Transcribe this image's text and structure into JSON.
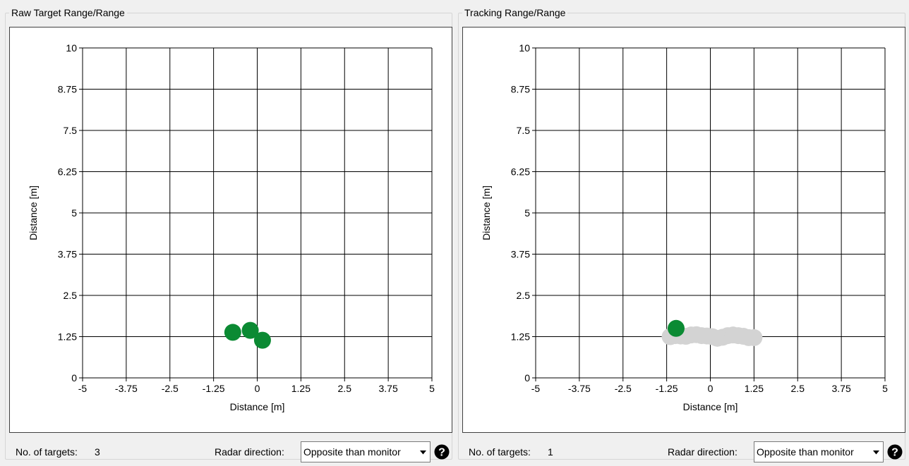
{
  "panels": [
    {
      "title": "Raw Target Range/Range",
      "targets_label": "No. of targets:",
      "targets_value": "3",
      "direction_label": "Radar direction:",
      "direction_value": "Opposite than monitor",
      "direction_options": [
        "Opposite than monitor"
      ]
    },
    {
      "title": "Tracking Range/Range",
      "targets_label": "No. of targets:",
      "targets_value": "1",
      "direction_label": "Radar direction:",
      "direction_value": "Opposite than monitor",
      "direction_options": [
        "Opposite than monitor"
      ]
    }
  ],
  "colors": {
    "target": "#0b8a33",
    "track_history": "#d3d3d3",
    "grid": "#000000",
    "background": "#ffffff"
  },
  "icons": {
    "help": "help-question-icon",
    "dropdown": "chevron-down-icon"
  },
  "chart_data": [
    {
      "type": "scatter",
      "title": "",
      "xlabel": "Distance [m]",
      "ylabel": "Distance [m]",
      "xlim": [
        -5,
        5
      ],
      "ylim": [
        0,
        10
      ],
      "xticks": [
        "-5",
        "-3.75",
        "-2.5",
        "-1.25",
        "0",
        "1.25",
        "2.5",
        "3.75",
        "5"
      ],
      "yticks": [
        "0",
        "1.25",
        "2.5",
        "3.75",
        "5",
        "6.25",
        "7.5",
        "8.75",
        "10"
      ],
      "grid": true,
      "trail": [],
      "points": [
        {
          "x": -0.7,
          "y": 1.38
        },
        {
          "x": -0.2,
          "y": 1.44
        },
        {
          "x": 0.15,
          "y": 1.14
        }
      ]
    },
    {
      "type": "scatter",
      "title": "",
      "xlabel": "Distance [m]",
      "ylabel": "Distance [m]",
      "xlim": [
        -5,
        5
      ],
      "ylim": [
        0,
        10
      ],
      "xticks": [
        "-5",
        "-3.75",
        "-2.5",
        "-1.25",
        "0",
        "1.25",
        "2.5",
        "3.75",
        "5"
      ],
      "yticks": [
        "0",
        "1.25",
        "2.5",
        "3.75",
        "5",
        "6.25",
        "7.5",
        "8.75",
        "10"
      ],
      "grid": true,
      "trail": [
        {
          "x": -1.15,
          "y": 1.25
        },
        {
          "x": -1.0,
          "y": 1.28
        },
        {
          "x": -0.85,
          "y": 1.27
        },
        {
          "x": -0.7,
          "y": 1.26
        },
        {
          "x": -0.55,
          "y": 1.3
        },
        {
          "x": -0.4,
          "y": 1.31
        },
        {
          "x": -0.25,
          "y": 1.28
        },
        {
          "x": -0.1,
          "y": 1.27
        },
        {
          "x": 0.05,
          "y": 1.25
        },
        {
          "x": 0.2,
          "y": 1.2
        },
        {
          "x": 0.35,
          "y": 1.23
        },
        {
          "x": 0.5,
          "y": 1.28
        },
        {
          "x": 0.65,
          "y": 1.3
        },
        {
          "x": 0.8,
          "y": 1.28
        },
        {
          "x": 0.95,
          "y": 1.26
        },
        {
          "x": 1.1,
          "y": 1.22
        },
        {
          "x": 1.25,
          "y": 1.22
        }
      ],
      "points": [
        {
          "x": -0.98,
          "y": 1.5
        }
      ]
    }
  ]
}
